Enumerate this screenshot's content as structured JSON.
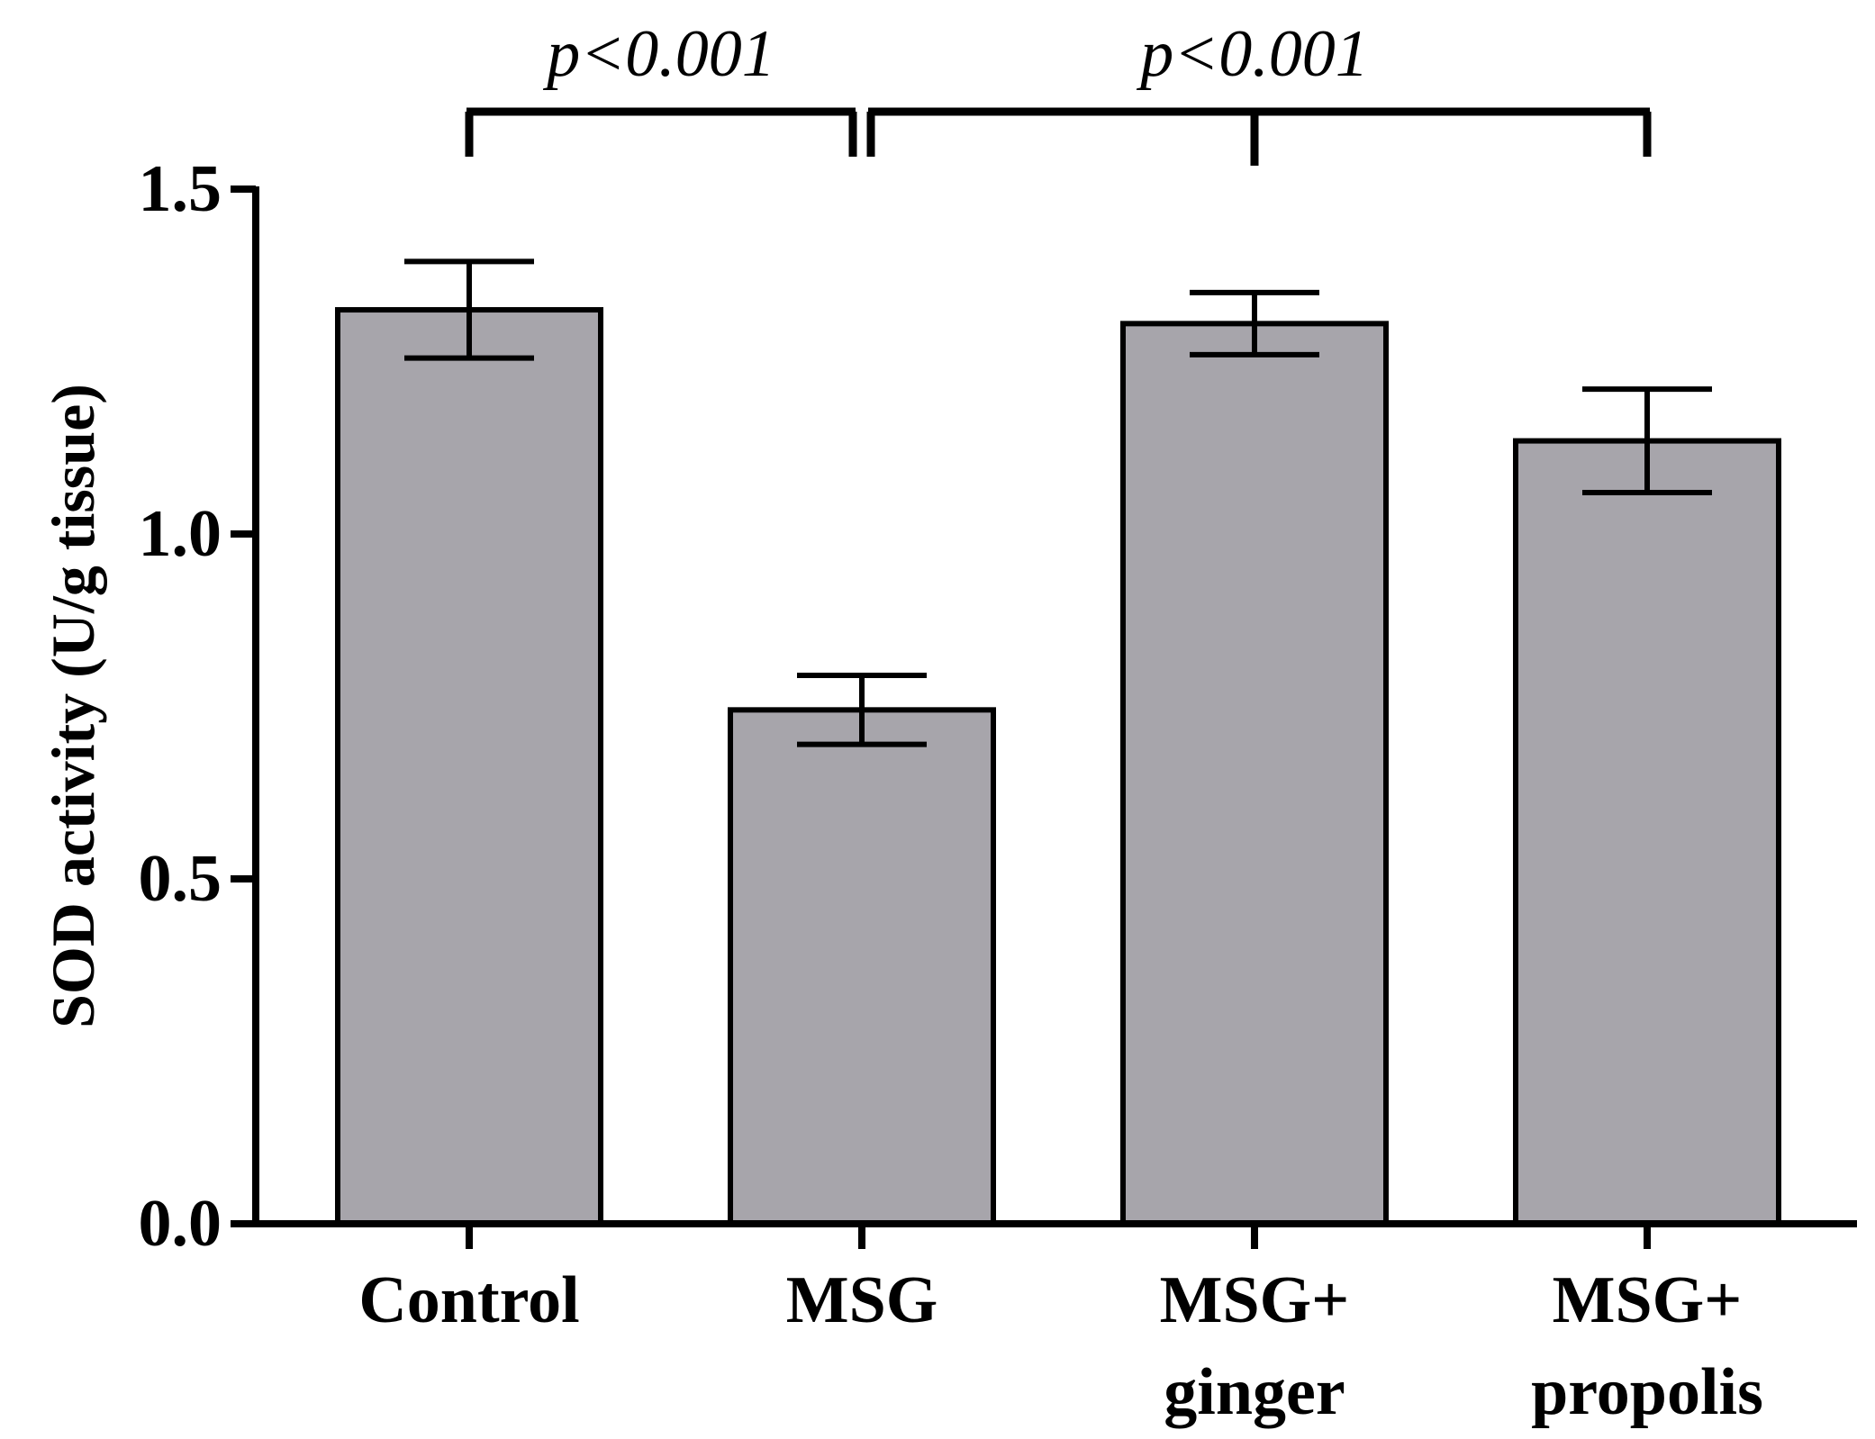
{
  "chart_data": {
    "type": "bar",
    "title": "",
    "xlabel": "",
    "ylabel": "SOD activity (U/g tissue)",
    "ylim": [
      0,
      1.5
    ],
    "yticks": [
      "0.0",
      "0.5",
      "1.0",
      "1.5"
    ],
    "categories": [
      {
        "lines": [
          "Control"
        ]
      },
      {
        "lines": [
          "MSG"
        ]
      },
      {
        "lines": [
          "MSG+",
          "ginger"
        ]
      },
      {
        "lines": [
          "MSG+",
          "propolis"
        ]
      }
    ],
    "values": [
      1.325,
      0.745,
      1.305,
      1.135
    ],
    "errors": [
      0.07,
      0.05,
      0.045,
      0.075
    ],
    "bar_color": "#a7a5ab",
    "edge_color": "#000000",
    "grid": false,
    "significance": [
      {
        "label": "p<0.001",
        "from": 0,
        "to": [
          1
        ]
      },
      {
        "label": "p<0.001",
        "from": 1,
        "to": [
          2,
          3
        ]
      }
    ]
  }
}
